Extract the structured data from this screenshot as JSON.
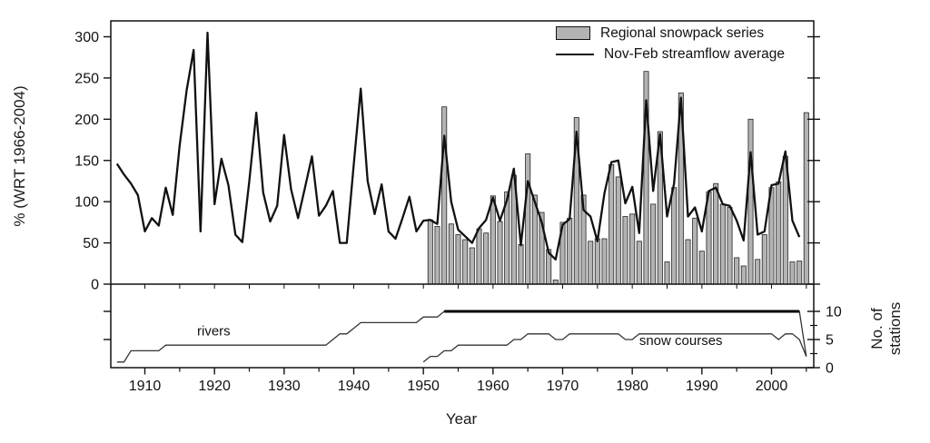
{
  "figure": {
    "background": "#ffffff",
    "frame_color": "#111111",
    "legend": {
      "items": [
        {
          "label": "Regional snowpack series",
          "swatch": "bar",
          "fill": "#b3b3b3",
          "stroke": "#111111"
        },
        {
          "label": "Nov-Feb streamflow average",
          "swatch": "line",
          "color": "#111111"
        }
      ]
    },
    "axes": {
      "left_label": "% (WRT 1966-2004)",
      "right_label_line1": "No. of",
      "right_label_line2": "stations",
      "x_label": "Year"
    }
  },
  "chart_data": [
    {
      "panel": "top",
      "type": "bar+line",
      "ylabel": "% (WRT 1966-2004)",
      "ylim": [
        0,
        319
      ],
      "yticks": [
        0,
        50,
        100,
        150,
        200,
        250,
        300
      ],
      "xlim": [
        1905,
        2006
      ],
      "xticks": [
        1910,
        1920,
        1930,
        1940,
        1950,
        1960,
        1970,
        1980,
        1990,
        2000
      ],
      "x_minor_step": 5,
      "grid": false,
      "legend_position": "top-right-inside",
      "series": [
        {
          "name": "Regional snowpack series",
          "type": "bar",
          "color": "#b3b3b3",
          "edge_color": "#222222",
          "start_year": 1951,
          "values": [
            78,
            70,
            215,
            73,
            60,
            54,
            44,
            67,
            62,
            107,
            76,
            112,
            132,
            48,
            158,
            108,
            87,
            42,
            5,
            75,
            80,
            202,
            108,
            52,
            55,
            55,
            145,
            130,
            82,
            85,
            52,
            258,
            97,
            185,
            27,
            117,
            232,
            54,
            80,
            40,
            112,
            122,
            97,
            93,
            32,
            22,
            200,
            30,
            60,
            117,
            124,
            155,
            27,
            28,
            208
          ]
        },
        {
          "name": "Nov-Feb streamflow average",
          "type": "line",
          "color": "#111111",
          "start_year": 1906,
          "values": [
            146,
            133,
            122,
            108,
            64,
            80,
            71,
            117,
            84,
            168,
            235,
            284,
            64,
            305,
            97,
            152,
            120,
            60,
            51,
            125,
            208,
            111,
            76,
            95,
            181,
            115,
            80,
            117,
            155,
            83,
            95,
            113,
            50,
            50,
            145,
            237,
            125,
            85,
            121,
            64,
            55,
            80,
            106,
            64,
            77,
            78,
            73,
            180,
            100,
            66,
            58,
            50,
            68,
            78,
            105,
            77,
            102,
            140,
            47,
            125,
            100,
            75,
            38,
            30,
            72,
            79,
            185,
            90,
            82,
            52,
            110,
            148,
            150,
            98,
            118,
            62,
            223,
            113,
            182,
            82,
            122,
            226,
            82,
            93,
            64,
            113,
            117,
            97,
            95,
            77,
            53,
            160,
            60,
            64,
            120,
            122,
            161,
            77,
            57
          ]
        }
      ]
    },
    {
      "panel": "bottom",
      "type": "line",
      "ylabel": "No. of stations",
      "ylim": [
        0,
        14.5
      ],
      "yticks": [
        0,
        5,
        10
      ],
      "y_minor_ticks": [
        2.5,
        7.5
      ],
      "xlim": [
        1905,
        2006
      ],
      "grid": false,
      "series": [
        {
          "name": "rivers",
          "type": "line",
          "color": "#333333",
          "thick_from_year": 1953,
          "start_year": 1906,
          "values": [
            1,
            1,
            3,
            3,
            3,
            3,
            3,
            4,
            4,
            4,
            4,
            4,
            4,
            4,
            4,
            4,
            4,
            4,
            4,
            4,
            4,
            4,
            4,
            4,
            4,
            4,
            4,
            4,
            4,
            4,
            4,
            5,
            6,
            6,
            7,
            8,
            8,
            8,
            8,
            8,
            8,
            8,
            8,
            8,
            9,
            9,
            9,
            10,
            10,
            10,
            10,
            10,
            10,
            10,
            10,
            10,
            10,
            10,
            10,
            10,
            10,
            10,
            10,
            10,
            10,
            10,
            10,
            10,
            10,
            10,
            10,
            10,
            10,
            10,
            10,
            10,
            10,
            10,
            10,
            10,
            10,
            10,
            10,
            10,
            10,
            10,
            10,
            10,
            10,
            10,
            10,
            10,
            10,
            10,
            10,
            10,
            10,
            10,
            10,
            2
          ]
        },
        {
          "name": "snow courses",
          "type": "line",
          "color": "#333333",
          "start_year": 1950,
          "values": [
            1,
            2,
            2,
            3,
            3,
            4,
            4,
            4,
            4,
            4,
            4,
            4,
            4,
            5,
            5,
            6,
            6,
            6,
            6,
            5,
            5,
            6,
            6,
            6,
            6,
            6,
            6,
            6,
            6,
            5,
            5,
            6,
            6,
            6,
            6,
            6,
            6,
            6,
            6,
            6,
            6,
            6,
            6,
            6,
            6,
            6,
            6,
            6,
            6,
            6,
            6,
            5,
            6,
            6,
            5,
            2
          ]
        }
      ],
      "annotations": [
        {
          "text": "rivers",
          "year": 1917.5,
          "value": 5.7
        },
        {
          "text": "snow courses",
          "year": 1981,
          "value": 4.0
        }
      ]
    }
  ]
}
